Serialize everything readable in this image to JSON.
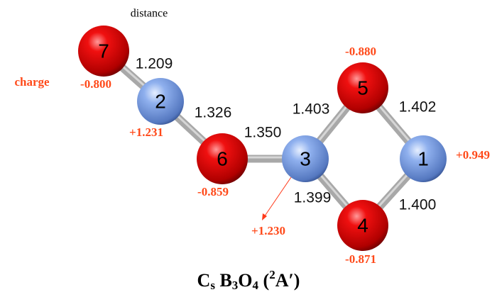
{
  "header": {
    "distance_label": "distance",
    "charge_label": "charge"
  },
  "nodes": [
    {
      "label": "7",
      "charge": "-0.800"
    },
    {
      "label": "2",
      "charge": "+1.231"
    },
    {
      "label": "6",
      "charge": "-0.859"
    },
    {
      "label": "3",
      "charge": "+1.230"
    },
    {
      "label": "5",
      "charge": "-0.880"
    },
    {
      "label": "4",
      "charge": "-0.871"
    },
    {
      "label": "1",
      "charge": "+0.949"
    }
  ],
  "bonds": [
    {
      "label": "1.209"
    },
    {
      "label": "1.326"
    },
    {
      "label": "1.350"
    },
    {
      "label": "1.403"
    },
    {
      "label": "1.402"
    },
    {
      "label": "1.399"
    },
    {
      "label": "1.400"
    }
  ],
  "title": {
    "parts": [
      "C",
      "s",
      " B",
      "3",
      "O",
      "4",
      " (",
      "2",
      "A′)"
    ]
  }
}
